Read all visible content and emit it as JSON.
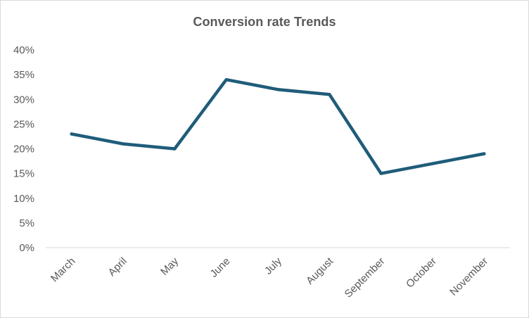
{
  "chart_data": {
    "type": "line",
    "title": "Conversion rate Trends",
    "categories": [
      "March",
      "April",
      "May",
      "June",
      "July",
      "August",
      "September",
      "October",
      "November"
    ],
    "series": [
      {
        "values": [
          23,
          21,
          20,
          34,
          32,
          31,
          15,
          17,
          19
        ]
      }
    ],
    "ylim": [
      0,
      40
    ],
    "yticks": [
      "0%",
      "5%",
      "10%",
      "15%",
      "20%",
      "25%",
      "30%",
      "35%",
      "40%"
    ],
    "grid": false,
    "legend": "none",
    "line_color": "#1F5C7A",
    "axis_color": "#D9D9D9",
    "label_color": "#595959"
  }
}
